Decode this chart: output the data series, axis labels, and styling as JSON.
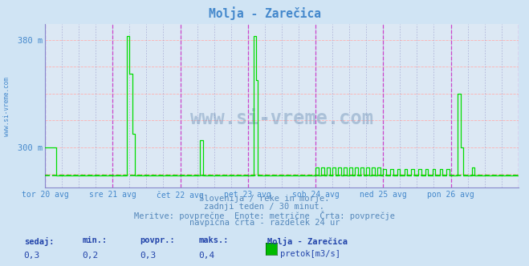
{
  "title": "Molja - Zarečica",
  "bg_color": "#d0e4f4",
  "plot_bg_color": "#dce8f4",
  "grid_color_h": "#ffb0b0",
  "grid_color_v": "#b0b0e8",
  "ytick_labels_show": [
    "300 m",
    "380 m"
  ],
  "ytick_labels_pos": [
    300,
    380
  ],
  "ymin": 270,
  "ymax": 392,
  "xmin": 0,
  "xmax": 336,
  "x_day_labels": [
    "tor 20 avg",
    "sre 21 avg",
    "čet 22 avg",
    "pet 23 avg",
    "sob 24 avg",
    "ned 25 avg",
    "pon 26 avg"
  ],
  "x_day_positions": [
    0,
    48,
    96,
    144,
    192,
    240,
    288
  ],
  "avg_line_y": 278.8,
  "avg_line_color": "#00cc00",
  "line_color": "#00dd00",
  "vline_color_major": "#cc44cc",
  "vline_color_minor": "#9999cc",
  "arrow_color": "#cc0000",
  "watermark_color": "#3a6a9a",
  "subtitle_color": "#5588bb",
  "subtitle1": "Slovenija / reke in morje.",
  "subtitle2": "zadnji teden / 30 minut.",
  "subtitle3": "Meritve: povprečne  Enote: metrične  Črta: povprečje",
  "subtitle4": "navpična črta - razdelek 24 ur",
  "stat_labels": [
    "sedaj:",
    "min.:",
    "povpr.:",
    "maks.:"
  ],
  "stat_values": [
    "0,3",
    "0,2",
    "0,3",
    "0,4"
  ],
  "legend_name": "Molja - Zarečica",
  "legend_unit": "pretok[m3/s]",
  "legend_color": "#00bb00",
  "watermark": "www.si-vreme.com",
  "sidebar_text": "www.si-vreme.com",
  "text_color": "#4488cc",
  "stat_label_color": "#2244aa",
  "stat_value_color": "#2244aa",
  "spine_color": "#8888cc",
  "axis_color": "#6666bb"
}
